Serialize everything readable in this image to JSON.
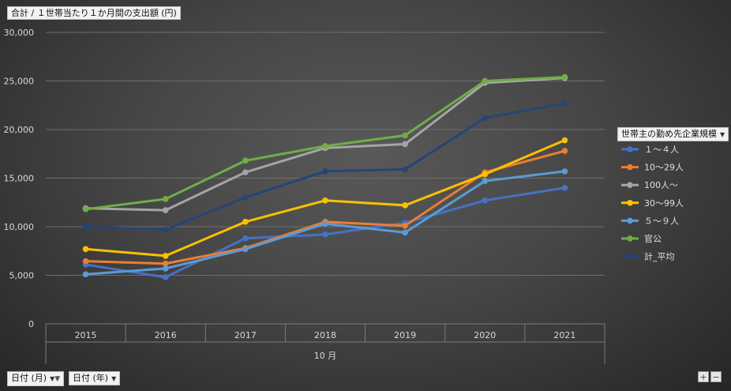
{
  "value_button": {
    "label": "合計 / １世帯当たり１か月間の支出額 (円)"
  },
  "legend": {
    "title": "世帯主の勤め先企業規模"
  },
  "axis_buttons": [
    {
      "label": "日付 (月)"
    },
    {
      "label": "日付 (年)"
    }
  ],
  "zoom": {
    "plus": "+",
    "minus": "−"
  },
  "chart_data": {
    "type": "line",
    "title": "",
    "xlabel": "10 月",
    "ylabel": "",
    "categories": [
      "2015",
      "2016",
      "2017",
      "2018",
      "2019",
      "2020",
      "2021"
    ],
    "ylim": [
      0,
      30000
    ],
    "yticks": [
      0,
      5000,
      10000,
      15000,
      20000,
      25000,
      30000
    ],
    "ytick_labels": [
      "0",
      "5,000",
      "10,000",
      "15,000",
      "20,000",
      "25,000",
      "30,000"
    ],
    "grid": true,
    "legend_position": "right",
    "series": [
      {
        "name": "１～４人",
        "color": "#4472c4",
        "values": [
          6100,
          4800,
          8800,
          9200,
          10400,
          12700,
          14000
        ]
      },
      {
        "name": "10～29人",
        "color": "#ed7d31",
        "values": [
          6450,
          6200,
          7800,
          10500,
          10100,
          15600,
          17800
        ]
      },
      {
        "name": "100人～",
        "color": "#a5a5a5",
        "values": [
          11900,
          11700,
          15600,
          18100,
          18500,
          24800,
          25300
        ]
      },
      {
        "name": "30～99人",
        "color": "#ffc000",
        "values": [
          7700,
          7000,
          10500,
          12700,
          12200,
          15400,
          18900
        ]
      },
      {
        "name": "５～９人",
        "color": "#5b9bd5",
        "values": [
          5100,
          5700,
          7700,
          10300,
          9400,
          14700,
          15700
        ]
      },
      {
        "name": "官公",
        "color": "#70ad47",
        "values": [
          11800,
          12850,
          16800,
          18300,
          19400,
          25000,
          25400
        ]
      },
      {
        "name": "計_平均",
        "color": "#264478",
        "values": [
          10000,
          9700,
          13000,
          15700,
          15900,
          21200,
          22700
        ]
      }
    ]
  }
}
